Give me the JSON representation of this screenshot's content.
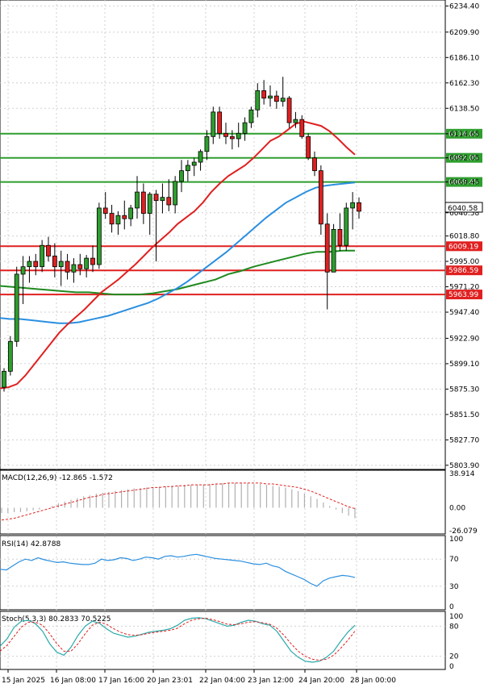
{
  "chart_data": [
    {
      "type": "candlestick",
      "y_ticks": [
        "6234.40",
        "6209.90",
        "6186.10",
        "6162.30",
        "6138.50",
        "6114.65",
        "6092.05",
        "6069.45",
        "6040.58",
        "6018.80",
        "5995.00",
        "5971.20",
        "5947.40",
        "5922.90",
        "5899.10",
        "5875.30",
        "5851.50",
        "5827.70",
        "5803.90"
      ],
      "x_ticks": [
        "15 Jan 2025",
        "16 Jan 08:00",
        "17 Jan 16:00",
        "20 Jan 23:01",
        "22 Jan 04:00",
        "23 Jan 12:00",
        "24 Jan 20:00",
        "28 Jan 00:00"
      ],
      "ylim": [
        5800,
        6240
      ],
      "price_label": "6040.58",
      "levels": [
        {
          "value": 6114.65,
          "label": "6114.65",
          "color": "#2e9e2e"
        },
        {
          "value": 6092.05,
          "label": "6092.05",
          "color": "#2e9e2e"
        },
        {
          "value": 6069.45,
          "label": "6069.45",
          "color": "#2e9e2e"
        },
        {
          "value": 6009.19,
          "label": "6009.19",
          "color": "#e02020"
        },
        {
          "value": 5986.59,
          "label": "5986.59",
          "color": "#e02020"
        },
        {
          "value": 5963.99,
          "label": "5963.99",
          "color": "#e02020"
        }
      ],
      "candles": [
        [
          5877,
          5895,
          5873,
          5892
        ],
        [
          5892,
          5925,
          5888,
          5920
        ],
        [
          5920,
          5990,
          5915,
          5983
        ],
        [
          5983,
          6000,
          5955,
          5990
        ],
        [
          5990,
          6000,
          5975,
          5995
        ],
        [
          5995,
          6002,
          5982,
          5990
        ],
        [
          5990,
          6015,
          5985,
          6010
        ],
        [
          6010,
          6018,
          5995,
          6000
        ],
        [
          6000,
          6012,
          5980,
          5990
        ],
        [
          5990,
          6005,
          5972,
          5995
        ],
        [
          5995,
          6002,
          5978,
          5985
        ],
        [
          5985,
          5998,
          5975,
          5992
        ],
        [
          5992,
          6002,
          5982,
          5988
        ],
        [
          5988,
          6001,
          5980,
          5998
        ],
        [
          5998,
          6010,
          5985,
          5992
        ],
        [
          5992,
          6050,
          5988,
          6045
        ],
        [
          6045,
          6060,
          6035,
          6040
        ],
        [
          6040,
          6048,
          6022,
          6030
        ],
        [
          6030,
          6042,
          6020,
          6038
        ],
        [
          6038,
          6052,
          6025,
          6035
        ],
        [
          6035,
          6048,
          6028,
          6045
        ],
        [
          6045,
          6075,
          6035,
          6060
        ],
        [
          6060,
          6068,
          6030,
          6040
        ],
        [
          6040,
          6060,
          6020,
          6058
        ],
        [
          6058,
          6062,
          5995,
          6052
        ],
        [
          6052,
          6068,
          6040,
          6055
        ],
        [
          6055,
          6072,
          6042,
          6048
        ],
        [
          6048,
          6075,
          6040,
          6070
        ],
        [
          6070,
          6090,
          6060,
          6080
        ],
        [
          6080,
          6090,
          6070,
          6085
        ],
        [
          6085,
          6092,
          6075,
          6088
        ],
        [
          6088,
          6100,
          6080,
          6098
        ],
        [
          6098,
          6118,
          6090,
          6112
        ],
        [
          6112,
          6140,
          6105,
          6135
        ],
        [
          6135,
          6140,
          6110,
          6115
        ],
        [
          6115,
          6125,
          6105,
          6112
        ],
        [
          6112,
          6118,
          6100,
          6110
        ],
        [
          6110,
          6125,
          6102,
          6115
        ],
        [
          6115,
          6130,
          6108,
          6125
        ],
        [
          6125,
          6140,
          6120,
          6137
        ],
        [
          6137,
          6162,
          6130,
          6155
        ],
        [
          6155,
          6165,
          6142,
          6148
        ],
        [
          6148,
          6160,
          6140,
          6150
        ],
        [
          6150,
          6155,
          6138,
          6145
        ],
        [
          6145,
          6168,
          6140,
          6148
        ],
        [
          6148,
          6150,
          6120,
          6125
        ],
        [
          6125,
          6135,
          6120,
          6128
        ],
        [
          6128,
          6132,
          6110,
          6112
        ],
        [
          6112,
          6115,
          6090,
          6092
        ],
        [
          6092,
          6098,
          6075,
          6080
        ],
        [
          6080,
          6085,
          6020,
          6030
        ],
        [
          6030,
          6040,
          5950,
          5985
        ],
        [
          5985,
          6030,
          5985,
          6025
        ],
        [
          6025,
          6040,
          6005,
          6010
        ],
        [
          6010,
          6050,
          6005,
          6045
        ],
        [
          6045,
          6060,
          6025,
          6050
        ],
        [
          6050,
          6055,
          6035,
          6042
        ]
      ],
      "ma_red": [
        5876,
        5877,
        5880,
        5888,
        5898,
        5908,
        5918,
        5928,
        5936,
        5943,
        5950,
        5958,
        5966,
        5972,
        5978,
        5985,
        5992,
        6000,
        6008,
        6015,
        6022,
        6030,
        6036,
        6042,
        6050,
        6060,
        6068,
        6075,
        6080,
        6085,
        6092,
        6100,
        6108,
        6112,
        6118,
        6124,
        6126,
        6124,
        6122,
        6117,
        6110,
        6102,
        6095
      ],
      "ma_blue": [
        5942,
        5941,
        5941,
        5940,
        5939,
        5938,
        5937,
        5937,
        5938,
        5940,
        5942,
        5944,
        5947,
        5950,
        5953,
        5956,
        5960,
        5965,
        5970,
        5976,
        5983,
        5990,
        5997,
        6004,
        6012,
        6020,
        6028,
        6036,
        6043,
        6050,
        6055,
        6060,
        6064,
        6066,
        6067,
        6068,
        6069
      ],
      "ma_green": [
        5972,
        5971,
        5970,
        5969,
        5968,
        5967,
        5966,
        5966,
        5965,
        5964,
        5964,
        5964,
        5965,
        5967,
        5969,
        5972,
        5975,
        5978,
        5983,
        5986,
        5990,
        5993,
        5996,
        5999,
        6002,
        6004,
        6004,
        6005,
        6005
      ],
      "macd": {
        "title": "MACD(12,26,9) -12.865 -1.572",
        "ticks": [
          "38.914",
          "0.00",
          "-26.079"
        ],
        "ylim": [
          -26.079,
          38.914
        ],
        "hist": [
          -6,
          -6,
          -5,
          -5,
          -4,
          -3,
          -2,
          0,
          2,
          5,
          7,
          9,
          11,
          13,
          14,
          16,
          17,
          18,
          19,
          20,
          21,
          22,
          22,
          23,
          23,
          24,
          24,
          25,
          25,
          26,
          26,
          26,
          26,
          27,
          27,
          28,
          28,
          28,
          28,
          28,
          27,
          27,
          26,
          25,
          24,
          23,
          21,
          19,
          16,
          13,
          10,
          6,
          2,
          -2,
          -6,
          -9,
          -12
        ],
        "signal": [
          -14,
          -13,
          -12,
          -10,
          -8,
          -6,
          -4,
          -2,
          0,
          2,
          4,
          6,
          8,
          10,
          12,
          13,
          15,
          16,
          17,
          18,
          19,
          20,
          21,
          22,
          23,
          23,
          24,
          24,
          25,
          25,
          26,
          26,
          26,
          26,
          27,
          27,
          28,
          28,
          28,
          28,
          28,
          28,
          27,
          27,
          26,
          25,
          24,
          23,
          21,
          19,
          16,
          13,
          10,
          7,
          4,
          1,
          -1
        ]
      },
      "rsi": {
        "title": "RSI(14) 42.8788",
        "ticks": [
          "100",
          "70",
          "30",
          "0"
        ],
        "values": [
          55,
          54,
          60,
          66,
          70,
          68,
          72,
          69,
          67,
          65,
          66,
          64,
          63,
          62,
          62,
          64,
          70,
          68,
          69,
          72,
          71,
          68,
          70,
          73,
          72,
          70,
          74,
          75,
          73,
          74,
          76,
          77,
          75,
          73,
          71,
          70,
          69,
          68,
          67,
          65,
          63,
          62,
          64,
          60,
          58,
          52,
          48,
          44,
          40,
          34,
          30,
          38,
          42,
          44,
          46,
          45,
          43
        ]
      },
      "stoch": {
        "title": "Stoch(5,3,3) 80.2833 70.5225",
        "ticks": [
          "100",
          "80",
          "20",
          "0"
        ],
        "k": [
          40,
          55,
          78,
          90,
          92,
          85,
          70,
          45,
          28,
          22,
          38,
          62,
          80,
          90,
          86,
          75,
          66,
          62,
          58,
          60,
          64,
          68,
          70,
          72,
          75,
          82,
          92,
          96,
          97,
          95,
          90,
          85,
          80,
          82,
          88,
          92,
          90,
          85,
          82,
          70,
          50,
          30,
          18,
          10,
          8,
          10,
          18,
          30,
          50,
          68,
          82
        ],
        "d": [
          30,
          42,
          60,
          78,
          88,
          88,
          82,
          65,
          45,
          30,
          30,
          45,
          65,
          82,
          88,
          84,
          75,
          68,
          63,
          62,
          63,
          66,
          68,
          70,
          72,
          76,
          85,
          92,
          95,
          96,
          93,
          89,
          84,
          83,
          85,
          88,
          89,
          87,
          84,
          76,
          62,
          45,
          30,
          20,
          14,
          12,
          14,
          22,
          36,
          52,
          70
        ]
      }
    }
  ]
}
